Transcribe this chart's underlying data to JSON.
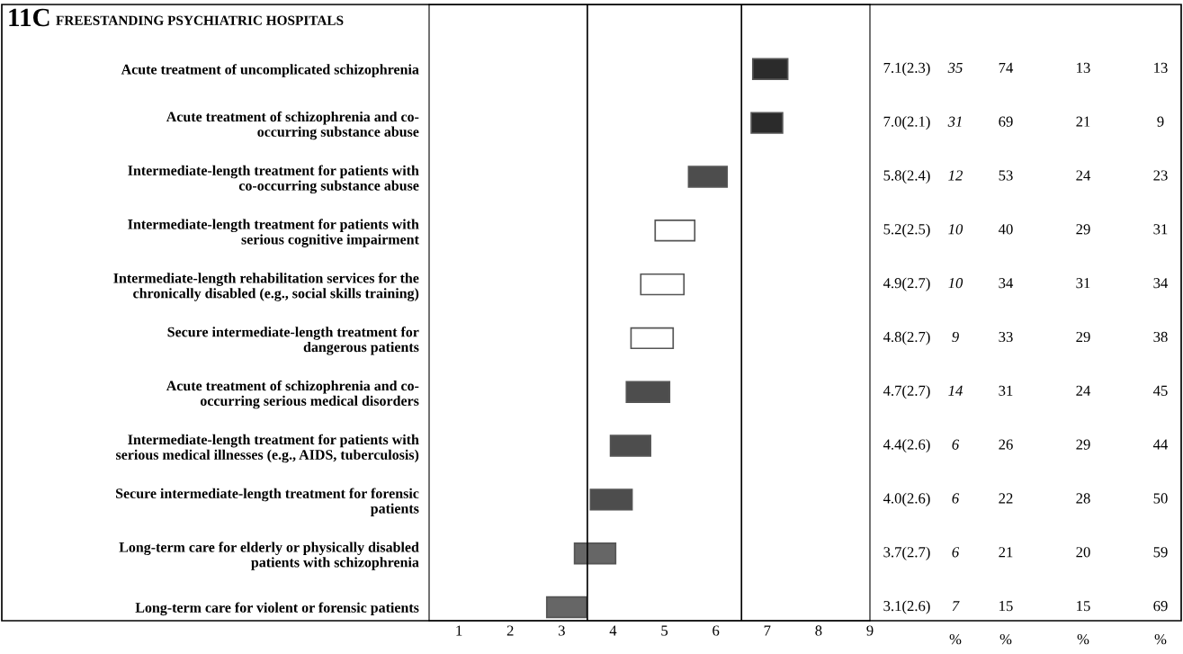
{
  "chart_data": {
    "type": "bar",
    "orientation": "horizontal",
    "title": "11C",
    "subtitle": "FREESTANDING PSYCHIATRIC HOSPITALS",
    "categories": [
      "Acute treatment of uncomplicated schizophrenia",
      "Acute treatment of schizophrenia and co-\noccurring substance abuse",
      "Intermediate-length treatment for patients with\nco-occurring substance abuse",
      "Intermediate-length treatment for patients with\nserious cognitive impairment",
      "Intermediate-length rehabilitation services for the\nchronically disabled (e.g., social skills training)",
      "Secure intermediate-length treatment for\ndangerous patients",
      "Acute treatment of schizophrenia and co-\noccurring serious medical disorders",
      "Intermediate-length treatment for patients with\nserious medical illnesses (e.g., AIDS, tuberculosis)",
      "Secure intermediate-length treatment for forensic\npatients",
      "Long-term care for elderly or physically disabled\npatients with schizophrenia",
      "Long-term care for violent or forensic patients"
    ],
    "base": [
      6.72,
      6.69,
      5.47,
      4.82,
      4.54,
      4.35,
      4.26,
      3.95,
      3.56,
      3.25,
      2.71
    ],
    "values": [
      0.68,
      0.61,
      0.75,
      0.77,
      0.84,
      0.82,
      0.84,
      0.78,
      0.81,
      0.8,
      0.77
    ],
    "colors": [
      "#2b2b2b",
      "#2b2b2b",
      "#4d4d4d",
      "#ffffff",
      "#ffffff",
      "#ffffff",
      "#4d4d4d",
      "#4d4d4d",
      "#4d4d4d",
      "#666666",
      "#666666"
    ],
    "annotations": [
      "7.1(2.3)",
      "35",
      "74",
      "13",
      "13",
      "7.0(2.1)",
      "31",
      "69",
      "21",
      "9",
      "5.8(2.4)",
      "12",
      "53",
      "24",
      "23",
      "5.2(2.5)",
      "10",
      "40",
      "29",
      "31",
      "4.9(2.7)",
      "10",
      "34",
      "31",
      "34",
      "4.8(2.7)",
      "9",
      "33",
      "29",
      "38",
      "4.7(2.7)",
      "14",
      "31",
      "24",
      "45",
      "4.4(2.6)",
      "6",
      "26",
      "29",
      "44",
      "4.0(2.6)",
      "6",
      "22",
      "28",
      "50",
      "3.7(2.7)",
      "6",
      "21",
      "20",
      "59",
      "3.1(2.6)",
      "7",
      "15",
      "15",
      "69",
      "%",
      "%",
      "%",
      "%"
    ],
    "xlim": [
      0.42,
      9
    ],
    "xticks": [
      1,
      2,
      3,
      4,
      5,
      6,
      7,
      8,
      9
    ],
    "ref_lines": [
      {
        "axis": "x",
        "value": 3.5,
        "color": "#000000"
      },
      {
        "axis": "x",
        "value": 6.5,
        "color": "#000000"
      }
    ],
    "grid": false,
    "legend": false
  }
}
